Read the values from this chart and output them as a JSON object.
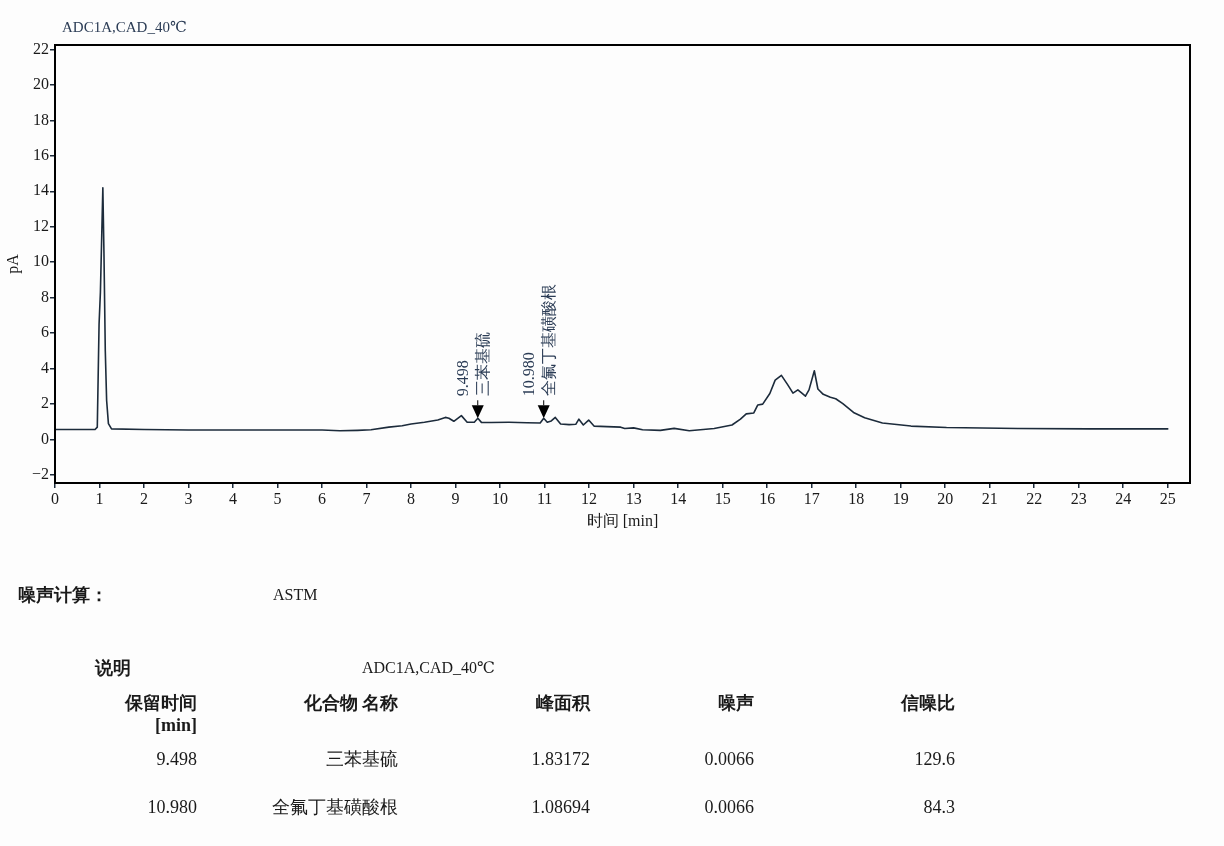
{
  "chart_data": {
    "type": "line",
    "title": "ADC1A,CAD_40℃",
    "xlabel": "时间 [min]",
    "ylabel": "pA",
    "x": [
      0,
      0.5,
      0.9,
      0.95,
      0.99,
      1.02,
      1.05,
      1.075,
      1.1,
      1.13,
      1.16,
      1.2,
      1.27,
      2,
      3,
      4,
      5,
      6,
      6.4,
      6.8,
      7.1,
      7.5,
      7.8,
      8,
      8.3,
      8.6,
      8.77,
      8.85,
      8.96,
      9.13,
      9.26,
      9.42,
      9.5,
      9.58,
      9.8,
      10.2,
      10.6,
      10.9,
      10.98,
      11.06,
      11.15,
      11.24,
      11.36,
      11.55,
      11.7,
      11.77,
      11.87,
      11.99,
      12.11,
      12.4,
      12.71,
      12.8,
      13,
      13.2,
      13.6,
      13.91,
      14.25,
      14.81,
      15.21,
      15.4,
      15.53,
      15.7,
      15.79,
      15.9,
      16.06,
      16.18,
      16.32,
      16.46,
      16.58,
      16.69,
      16.78,
      16.86,
      16.94,
      17.06,
      17.14,
      17.26,
      17.42,
      17.54,
      17.7,
      17.94,
      18.19,
      18.59,
      19.23,
      20.03,
      21.64,
      23.25,
      25
    ],
    "values": [
      0.57,
      0.57,
      0.57,
      0.7,
      6.5,
      8.3,
      11.5,
      14.2,
      10.5,
      5,
      2.2,
      0.9,
      0.6,
      0.57,
      0.54,
      0.54,
      0.54,
      0.54,
      0.5,
      0.52,
      0.55,
      0.7,
      0.78,
      0.88,
      0.98,
      1.1,
      1.25,
      1.2,
      1.03,
      1.35,
      0.98,
      0.98,
      1.2,
      0.97,
      0.96,
      0.98,
      0.95,
      0.93,
      1.2,
      0.98,
      1.05,
      1.25,
      0.88,
      0.84,
      0.86,
      1.15,
      0.82,
      1.1,
      0.76,
      0.73,
      0.7,
      0.62,
      0.66,
      0.55,
      0.52,
      0.63,
      0.5,
      0.62,
      0.82,
      1.15,
      1.45,
      1.5,
      1.95,
      2,
      2.6,
      3.35,
      3.62,
      3.1,
      2.62,
      2.8,
      2.62,
      2.45,
      2.8,
      3.88,
      2.85,
      2.55,
      2.38,
      2.3,
      2.03,
      1.53,
      1.23,
      0.93,
      0.76,
      0.68,
      0.62,
      0.6,
      0.6
    ],
    "color": "#1c2b3b",
    "xlim": [
      0,
      25.5
    ],
    "xticks": [
      0,
      1,
      2,
      3,
      4,
      5,
      6,
      7,
      8,
      9,
      10,
      11,
      12,
      13,
      14,
      15,
      16,
      17,
      18,
      19,
      20,
      21,
      22,
      23,
      24,
      25
    ],
    "ylim": [
      -2.45,
      22.25
    ],
    "yticks": [
      {
        "value": -2,
        "label": "−2"
      },
      0,
      2,
      4,
      6,
      8,
      10,
      12,
      14,
      16,
      18,
      20,
      22
    ],
    "annotations": [
      {
        "text": "9.498\n三苯基硫",
        "x": 9.498,
        "y": 1.2
      },
      {
        "text": "10.980\n全氟丁基磺酸根",
        "x": 10.98,
        "y": 1.2
      },
      "噪声计算：",
      "ASTM",
      "说明",
      "ADC1A,CAD_40℃",
      "保留时间\n[min]",
      "化合物 名称",
      "峰面积",
      "噪声",
      "信噪比",
      "9.498",
      "三苯基硫",
      "1.83172",
      "0.0066",
      "129.6",
      "10.980",
      "全氟丁基磺酸根",
      "1.08694",
      "0.0066",
      "84.3"
    ]
  }
}
